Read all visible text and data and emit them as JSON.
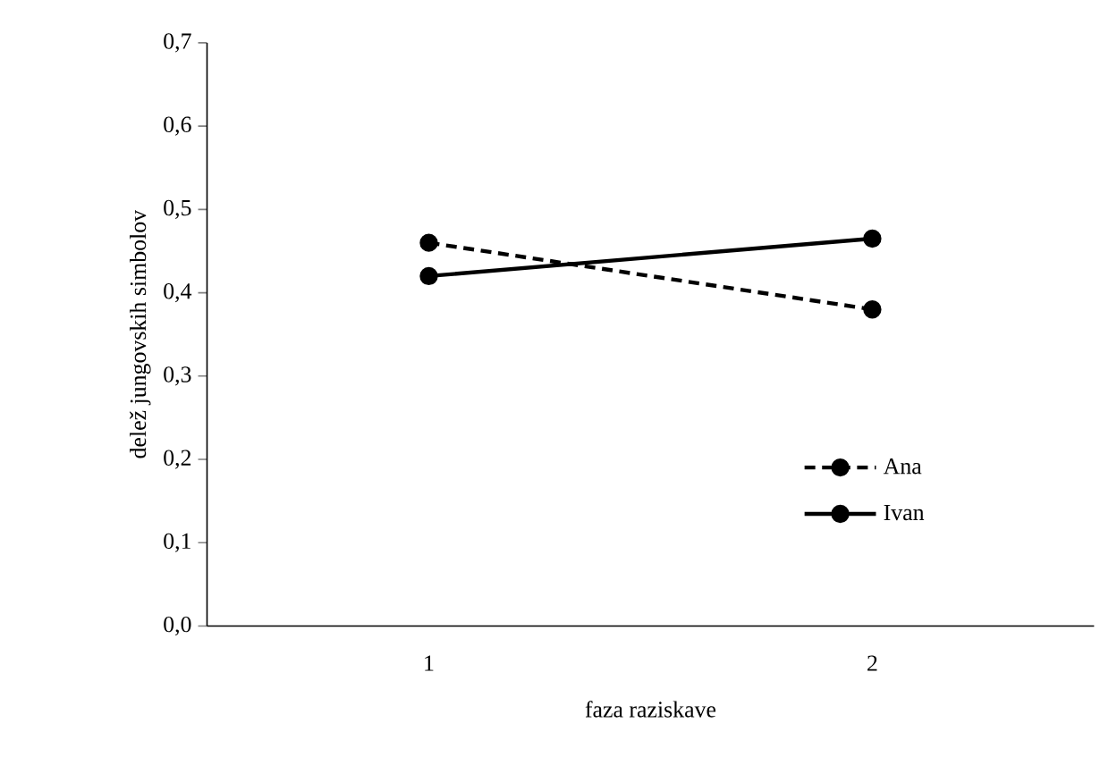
{
  "chart_data": {
    "type": "line",
    "xlabel": "faza raziskave",
    "ylabel": "delež jungovskih simbolov",
    "categories": [
      "1",
      "2"
    ],
    "series": [
      {
        "name": "Ana",
        "color": "#000000",
        "line_style": "dashed",
        "values": [
          0.46,
          0.38
        ]
      },
      {
        "name": "Ivan",
        "color": "#000000",
        "line_style": "solid",
        "values": [
          0.42,
          0.465
        ]
      }
    ],
    "ylim": [
      0,
      0.7
    ],
    "yticks": [
      {
        "value": 0,
        "label": "0,0"
      },
      {
        "value": 0.1,
        "label": "0,1"
      },
      {
        "value": 0.2,
        "label": "0,2"
      },
      {
        "value": 0.3,
        "label": "0,3"
      },
      {
        "value": 0.4,
        "label": "0,4"
      },
      {
        "value": 0.5,
        "label": "0,5"
      },
      {
        "value": 0.6,
        "label": "0,6"
      },
      {
        "value": 0.7,
        "label": "0,7"
      }
    ],
    "marker": "circle",
    "legend": "right"
  }
}
